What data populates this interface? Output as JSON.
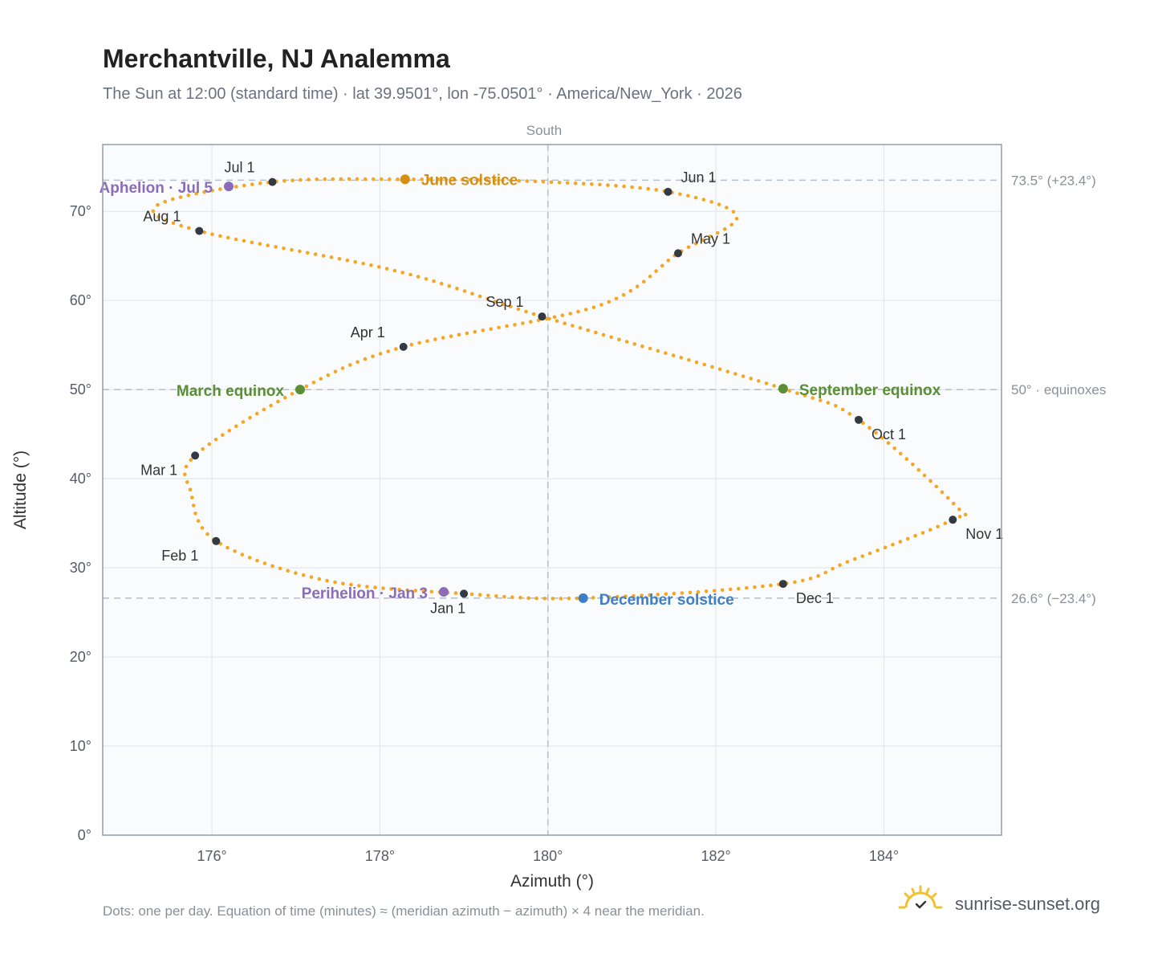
{
  "chart_data": {
    "type": "scatter",
    "title": "Merchantville, NJ Analemma",
    "subtitle": "The Sun at 12:00 (standard time) · lat 39.9501°, lon -75.0501° · America/New_York · 2026",
    "xlabel": "Azimuth (°)",
    "ylabel": "Altitude (°)",
    "top_label": "South",
    "xlim": [
      174.7,
      185.4
    ],
    "ylim": [
      0,
      77.5
    ],
    "x_ticks": [
      176,
      178,
      180,
      182,
      184
    ],
    "x_tick_labels": [
      "176°",
      "178°",
      "180°",
      "182°",
      "184°"
    ],
    "y_ticks": [
      0,
      10,
      20,
      30,
      40,
      50,
      60,
      70
    ],
    "y_tick_labels": [
      "0°",
      "10°",
      "20°",
      "30°",
      "40°",
      "50°",
      "60°",
      "70°"
    ],
    "grid": true,
    "meridian_azimuth": 180,
    "reference_lines": [
      {
        "y": 73.5,
        "label": "73.5° (+23.4°)"
      },
      {
        "y": 50,
        "label": "50° · equinoxes"
      },
      {
        "y": 26.6,
        "label": "26.6° (−23.4°)"
      }
    ],
    "series": [
      {
        "marker": "daily-dot",
        "color": "#f5a623",
        "points": [
          [
            179.0,
            27.1
          ],
          [
            177.35,
            28.6
          ],
          [
            176.05,
            33.0
          ],
          [
            175.75,
            38.5
          ],
          [
            175.8,
            42.6
          ],
          [
            177.05,
            50.0
          ],
          [
            178.28,
            54.8
          ],
          [
            180.6,
            59.4
          ],
          [
            181.55,
            65.3
          ],
          [
            182.25,
            69.4
          ],
          [
            181.43,
            72.2
          ],
          [
            180.0,
            73.3
          ],
          [
            178.3,
            73.6
          ],
          [
            176.72,
            73.3
          ],
          [
            175.35,
            70.7
          ],
          [
            175.85,
            67.8
          ],
          [
            178.2,
            63.3
          ],
          [
            179.93,
            58.2
          ],
          [
            182.8,
            50.1
          ],
          [
            183.7,
            46.6
          ],
          [
            184.85,
            37.0
          ],
          [
            184.82,
            35.4
          ],
          [
            183.6,
            30.8
          ],
          [
            182.8,
            28.2
          ],
          [
            180.42,
            26.6
          ],
          [
            179.0,
            27.1
          ]
        ]
      }
    ],
    "month_markers": [
      {
        "label": "Jan 1",
        "x": 179.0,
        "y": 27.1
      },
      {
        "label": "Feb 1",
        "x": 176.05,
        "y": 33.0
      },
      {
        "label": "Mar 1",
        "x": 175.8,
        "y": 42.6
      },
      {
        "label": "Apr 1",
        "x": 178.28,
        "y": 54.8
      },
      {
        "label": "May 1",
        "x": 181.55,
        "y": 65.3
      },
      {
        "label": "Jun 1",
        "x": 181.43,
        "y": 72.2
      },
      {
        "label": "Jul 1",
        "x": 176.72,
        "y": 73.3
      },
      {
        "label": "Aug 1",
        "x": 175.85,
        "y": 67.8
      },
      {
        "label": "Sep 1",
        "x": 179.93,
        "y": 58.2
      },
      {
        "label": "Oct 1",
        "x": 183.7,
        "y": 46.6
      },
      {
        "label": "Nov 1",
        "x": 184.82,
        "y": 35.4
      },
      {
        "label": "Dec 1",
        "x": 182.8,
        "y": 28.2
      }
    ],
    "events": [
      {
        "label": "June solstice",
        "x": 178.3,
        "y": 73.6,
        "color": "#d68f12"
      },
      {
        "label": "Aphelion · Jul 5",
        "x": 176.2,
        "y": 72.8,
        "color": "#8c6bb8"
      },
      {
        "label": "March equinox",
        "x": 177.05,
        "y": 50.0,
        "color": "#5a8f35"
      },
      {
        "label": "September equinox",
        "x": 182.8,
        "y": 50.1,
        "color": "#5a8f35"
      },
      {
        "label": "Perihelion · Jan 3",
        "x": 178.76,
        "y": 27.3,
        "color": "#8c6bb8"
      },
      {
        "label": "December solstice",
        "x": 180.42,
        "y": 26.6,
        "color": "#3d7fc7"
      }
    ]
  },
  "footnote": "Dots: one per day. Equation of time (minutes) ≈ (meridian azimuth − azimuth) × 4 near the meridian.",
  "brand": {
    "name": "sunrise-sunset.org",
    "icon": "sun-logo-icon",
    "color": "#f2c12e"
  }
}
